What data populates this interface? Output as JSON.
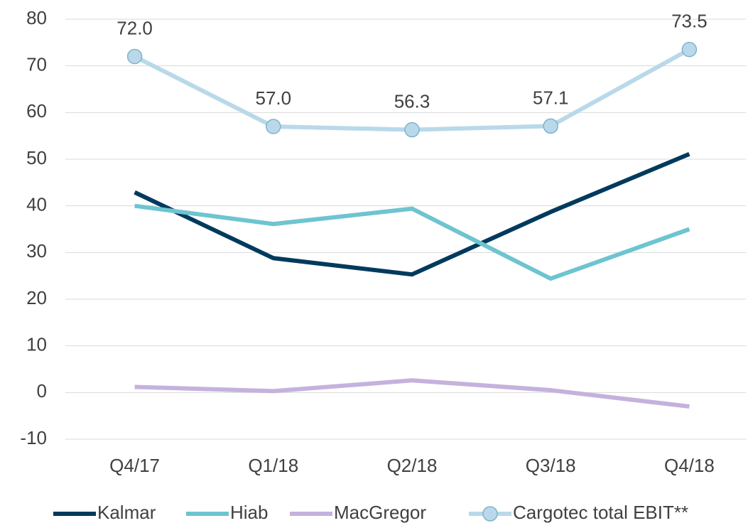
{
  "chart_data": {
    "type": "line",
    "categories": [
      "Q4/17",
      "Q1/18",
      "Q2/18",
      "Q3/18",
      "Q4/18"
    ],
    "series": [
      {
        "name": "Kalmar",
        "color": "#003a5c",
        "values": [
          42.9,
          28.8,
          25.3,
          38.7,
          51.1
        ]
      },
      {
        "name": "Hiab",
        "color": "#6ec4d0",
        "values": [
          40.0,
          36.1,
          39.4,
          24.4,
          35.0
        ]
      },
      {
        "name": "MacGregor",
        "color": "#c4b2dd",
        "values": [
          1.2,
          0.3,
          2.6,
          0.5,
          -3.0
        ]
      },
      {
        "name": "Cargotec total EBIT**",
        "color": "#b9d9ea",
        "marker": true,
        "values": [
          72.0,
          57.0,
          56.3,
          57.1,
          73.5
        ],
        "value_labels": [
          "72.0",
          "57.0",
          "56.3",
          "57.1",
          "73.5"
        ]
      }
    ],
    "ylim": [
      -10,
      80
    ],
    "yticks": [
      -10,
      0,
      10,
      20,
      30,
      40,
      50,
      60,
      70,
      80
    ],
    "grid": true,
    "legend": "bottom"
  }
}
